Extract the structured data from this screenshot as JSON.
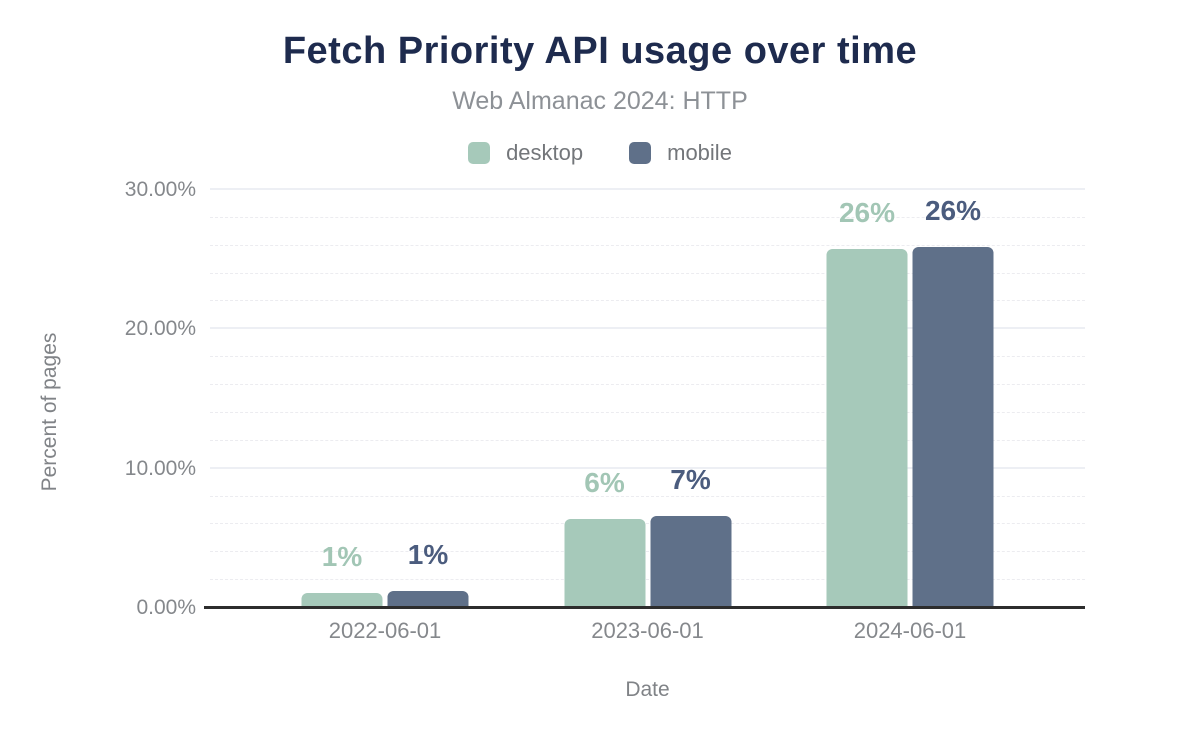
{
  "chart_data": {
    "type": "bar",
    "title": "Fetch Priority API usage over time",
    "subtitle": "Web Almanac 2024: HTTP",
    "xlabel": "Date",
    "ylabel": "Percent of pages",
    "categories": [
      "2022-06-01",
      "2023-06-01",
      "2024-06-01"
    ],
    "series": [
      {
        "name": "desktop",
        "color": "#a6c9ba",
        "label_color": "#a2c6b5",
        "values": [
          1,
          6,
          26
        ],
        "values_est": [
          1.1,
          6.4,
          25.8
        ],
        "labels": [
          "1%",
          "6%",
          "26%"
        ]
      },
      {
        "name": "mobile",
        "color": "#5f7089",
        "label_color": "#4b5c7e",
        "values": [
          1,
          7,
          26
        ],
        "values_est": [
          1.25,
          6.6,
          25.9
        ],
        "labels": [
          "1%",
          "7%",
          "26%"
        ]
      }
    ],
    "ylim": [
      0,
      30
    ],
    "yticks": [
      {
        "value": 0,
        "label": "0.00%"
      },
      {
        "value": 10,
        "label": "10.00%"
      },
      {
        "value": 20,
        "label": "20.00%"
      },
      {
        "value": 30,
        "label": "30.00%"
      }
    ],
    "minor_tick_step": 2,
    "grid": "horizontal; solid major lines every 10%, dashed minor lines every 2%",
    "legend_position": "top",
    "group_centers_pct": [
      20,
      50,
      80
    ],
    "colors": {
      "title": "#1e2b4e",
      "subtitle": "#8d9196",
      "axis_text": "#85888c",
      "axis_line": "#2d2d2d",
      "major_grid": "#edeff4",
      "minor_grid": "#ececf0"
    }
  }
}
